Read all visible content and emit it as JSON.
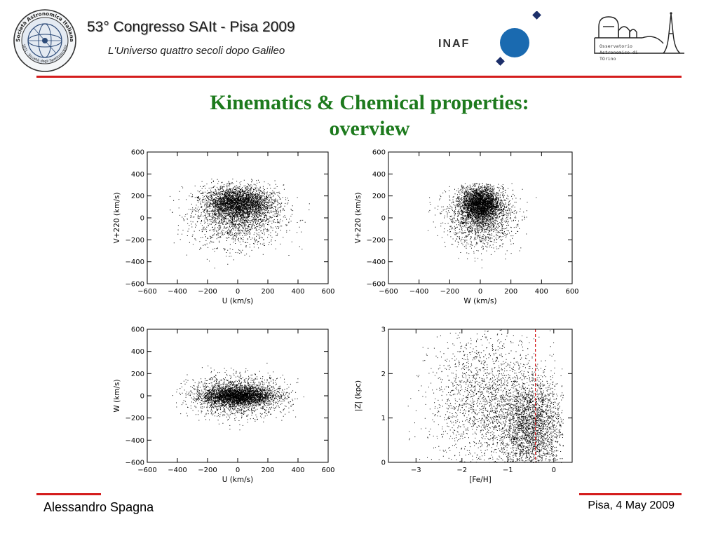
{
  "header": {
    "logo_left": {
      "name": "Società Astronomica Italiana seal",
      "ring_text": "Società Astronomica Italiana",
      "inner_text": "1871 · Società degli Spettroscopisti"
    },
    "conference_title": "53° Congresso SAIt - Pisa 2009",
    "conference_subtitle": "L'Universo quattro secoli dopo Galileo",
    "inaf_label": "INAF",
    "oato_lines": [
      "Osservatorio",
      "Astronomico di",
      "TOrino"
    ],
    "colors": {
      "rule": "#d41c1c",
      "inaf_blue": "#1a6ab0",
      "inaf_diamond": "#1c2f6a"
    }
  },
  "slide": {
    "title_line1": "Kinematics & Chemical properties:",
    "title_line2": "overview",
    "title_color": "#1d7a1d"
  },
  "footer": {
    "author": "Alessandro Spagna",
    "date": "Pisa, 4 May 2009"
  },
  "chart_data": [
    {
      "type": "scatter",
      "title": "",
      "xlabel": "U (km/s)",
      "ylabel": "V+220 (km/s)",
      "xlim": [
        -600,
        600
      ],
      "ylim": [
        -600,
        600
      ],
      "xticks": [
        -600,
        -400,
        -200,
        0,
        200,
        400,
        600
      ],
      "yticks": [
        -600,
        -400,
        -200,
        0,
        200,
        400,
        600
      ],
      "grid": false,
      "description_of_cloud": {
        "dense_core_center": [
          0,
          140
        ],
        "dense_core_spread": [
          110,
          70
        ],
        "halo_center": [
          0,
          20
        ],
        "halo_spread": [
          150,
          140
        ],
        "x_extent": [
          -480,
          480
        ],
        "y_extent": [
          -480,
          360
        ]
      },
      "color": "#000000"
    },
    {
      "type": "scatter",
      "title": "",
      "xlabel": "W (km/s)",
      "ylabel": "V+220 (km/s)",
      "xlim": [
        -600,
        600
      ],
      "ylim": [
        -600,
        600
      ],
      "xticks": [
        -600,
        -400,
        -200,
        0,
        200,
        400,
        600
      ],
      "yticks": [
        -600,
        -400,
        -200,
        0,
        200,
        400,
        600
      ],
      "grid": false,
      "description_of_cloud": {
        "dense_core_center": [
          0,
          130
        ],
        "dense_core_spread": [
          60,
          75
        ],
        "halo_center": [
          0,
          20
        ],
        "halo_spread": [
          110,
          140
        ],
        "x_extent": [
          -380,
          380
        ],
        "y_extent": [
          -460,
          320
        ]
      },
      "color": "#000000"
    },
    {
      "type": "scatter",
      "title": "",
      "xlabel": "U (km/s)",
      "ylabel": "W (km/s)",
      "xlim": [
        -600,
        600
      ],
      "ylim": [
        -600,
        600
      ],
      "xticks": [
        -600,
        -400,
        -200,
        0,
        200,
        400,
        600
      ],
      "yticks": [
        -600,
        -400,
        -200,
        0,
        200,
        400,
        600
      ],
      "grid": false,
      "description_of_cloud": {
        "dense_core_center": [
          0,
          0
        ],
        "dense_core_spread": [
          110,
          40
        ],
        "halo_center": [
          0,
          0
        ],
        "halo_spread": [
          160,
          90
        ],
        "x_extent": [
          -450,
          470
        ],
        "y_extent": [
          -380,
          300
        ]
      },
      "color": "#000000"
    },
    {
      "type": "scatter",
      "title": "",
      "xlabel": "[Fe/H]",
      "ylabel": "|Z| (kpc)",
      "xlim": [
        -3.6,
        0.4
      ],
      "ylim": [
        0,
        3
      ],
      "xticks": [
        -3,
        -2,
        -1,
        0
      ],
      "yticks": [
        0,
        1,
        2,
        3
      ],
      "grid": false,
      "reference_line": {
        "x": -0.4,
        "style": "dashed",
        "color": "#d41c1c"
      },
      "description_of_cloud": {
        "dense_core_center": [
          -0.5,
          0.8
        ],
        "dense_core_spread": [
          0.35,
          0.55
        ],
        "halo_center": [
          -1.5,
          1.4
        ],
        "halo_spread": [
          0.6,
          0.75
        ],
        "x_extent": [
          -3.2,
          0.2
        ],
        "y_extent": [
          0,
          3
        ]
      },
      "color": "#000000"
    }
  ]
}
